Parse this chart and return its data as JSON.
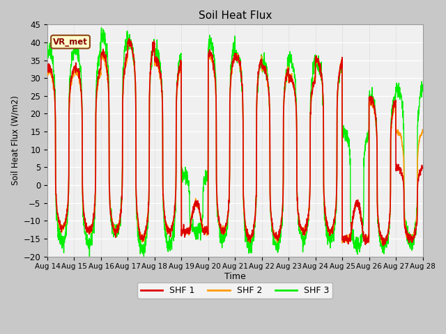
{
  "title": "Soil Heat Flux",
  "ylabel": "Soil Heat Flux (W/m2)",
  "xlabel": "Time",
  "ylim": [
    -20,
    45
  ],
  "yticks": [
    -20,
    -15,
    -10,
    -5,
    0,
    5,
    10,
    15,
    20,
    25,
    30,
    35,
    40,
    45
  ],
  "fig_bg_color": "#c8c8c8",
  "plot_bg_color": "#f0f0f0",
  "legend_label": "VR_met",
  "series_labels": [
    "SHF 1",
    "SHF 2",
    "SHF 3"
  ],
  "series_colors": [
    "#dd0000",
    "#ff9900",
    "#00ee00"
  ],
  "n_days": 14,
  "start_day": 14,
  "points_per_day": 144,
  "peaks1": [
    33,
    33,
    37,
    40,
    35,
    -5,
    37,
    36,
    33,
    30,
    35,
    -5,
    24,
    5
  ],
  "peaks2": [
    32,
    32,
    36,
    40,
    34,
    -5,
    36,
    36,
    33,
    30,
    35,
    -5,
    23,
    15
  ],
  "peaks3": [
    38,
    38,
    42,
    40,
    37,
    3,
    40,
    36,
    34,
    35,
    34,
    15,
    25,
    27
  ],
  "troughs1": [
    -12,
    -13,
    -13,
    -15,
    -13,
    -13,
    -13,
    -15,
    -15,
    -13,
    -13,
    -15,
    -16,
    -15
  ],
  "troughs2": [
    -12,
    -13,
    -13,
    -15,
    -13,
    -13,
    -13,
    -15,
    -15,
    -13,
    -13,
    -15,
    -16,
    -15
  ],
  "troughs3": [
    -16,
    -17,
    -13,
    -18,
    -17,
    -13,
    -15,
    -17,
    -17,
    -15,
    -15,
    -17,
    -17,
    -16
  ]
}
